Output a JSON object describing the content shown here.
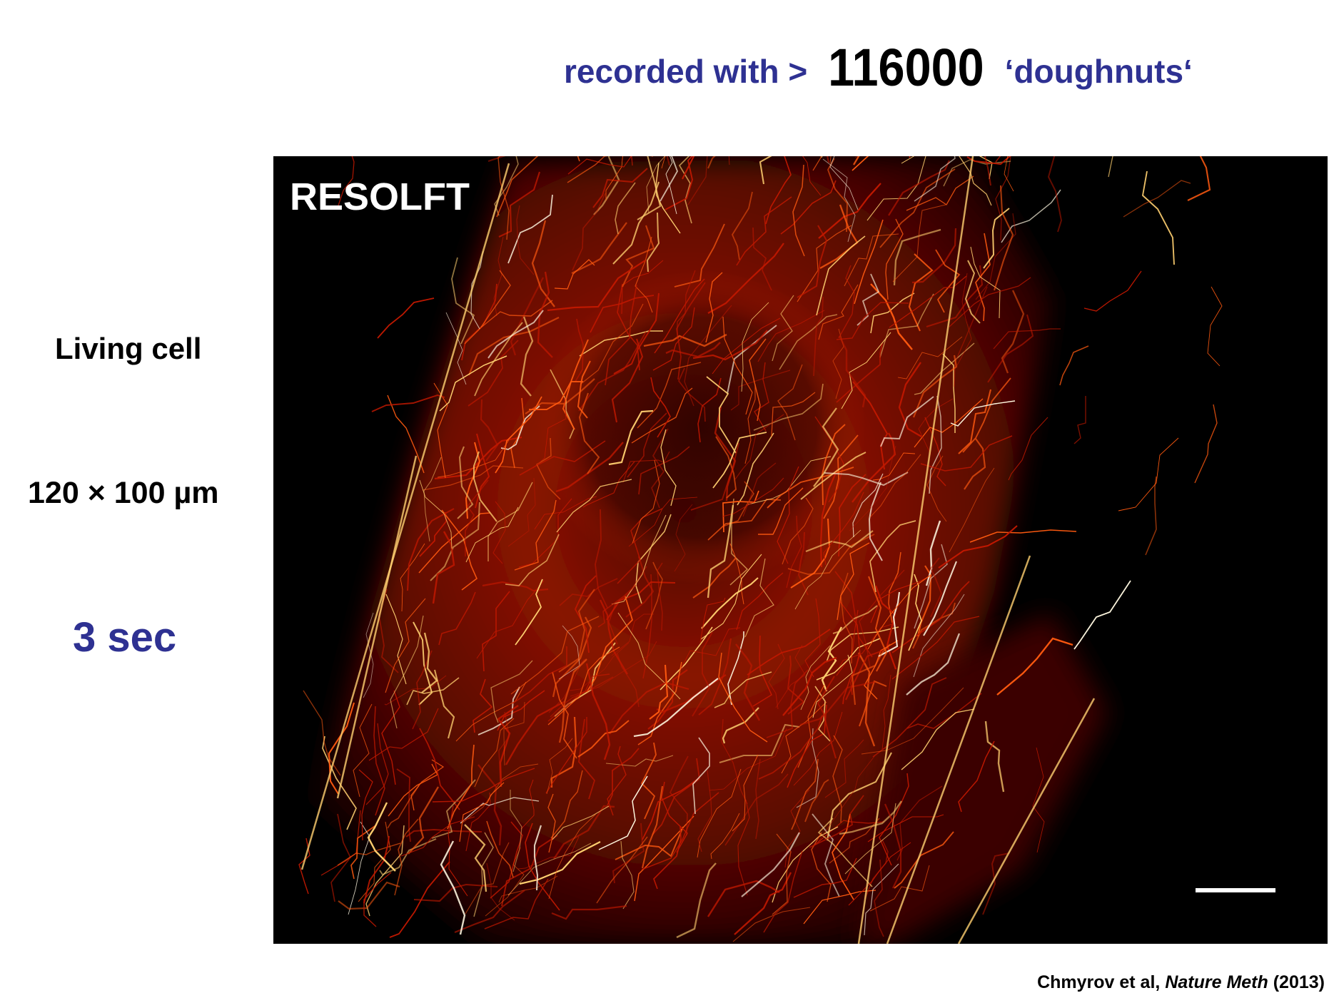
{
  "header": {
    "prefix": "recorded with >",
    "count": "116000",
    "suffix": "‘doughnuts‘"
  },
  "left_labels": {
    "sample": "Living cell",
    "field_of_view": "120 × 100 µm",
    "acquisition_time": "3 sec"
  },
  "figure": {
    "method_label": "RESOLFT",
    "colormap": [
      "#000000",
      "#5a0000",
      "#c01800",
      "#ff5a10",
      "#ffd070",
      "#fff8e0"
    ]
  },
  "citation": {
    "authors": "Chmyrov et al,",
    "journal": "Nature Meth",
    "year": "(2013)"
  },
  "colors": {
    "accent_blue": "#2e3192",
    "text": "#000000"
  }
}
